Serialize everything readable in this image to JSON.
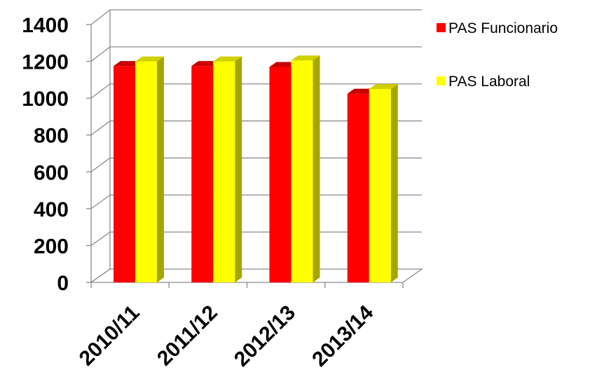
{
  "chart_data": {
    "type": "bar",
    "categories": [
      "2010/11",
      "2011/12",
      "2012/13",
      "2013/14"
    ],
    "series": [
      {
        "name": "PAS Funcionario",
        "values": [
          1175,
          1175,
          1170,
          1025
        ],
        "color": "#ff0000"
      },
      {
        "name": "PAS Laboral",
        "values": [
          1200,
          1200,
          1205,
          1050
        ],
        "color": "#ffff00"
      }
    ],
    "y_ticks": [
      "0",
      "200",
      "400",
      "600",
      "800",
      "1000",
      "1200",
      "1400"
    ],
    "ylim": [
      0,
      1400
    ],
    "grid": true,
    "legend_position": "top-right",
    "three_d": true
  }
}
